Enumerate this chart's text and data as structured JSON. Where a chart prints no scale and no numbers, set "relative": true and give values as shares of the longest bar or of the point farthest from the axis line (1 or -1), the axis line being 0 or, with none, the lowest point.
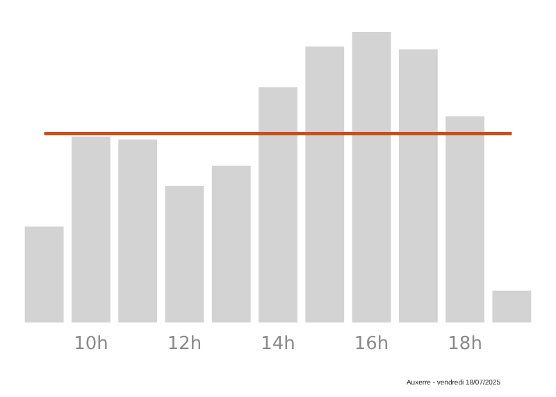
{
  "chart_data": {
    "type": "bar",
    "relative": true,
    "categories": [
      null,
      "10h",
      null,
      "12h",
      null,
      "14h",
      null,
      "16h",
      null,
      "18h",
      null
    ],
    "values": [
      0.33,
      0.64,
      0.63,
      0.47,
      0.54,
      0.81,
      0.95,
      1,
      0.94,
      0.71,
      0.11
    ],
    "color": "#d3d3d3",
    "ref_lines": [
      {
        "axis": "y",
        "value": 0.65,
        "color": "#c8501a"
      }
    ],
    "grid": false,
    "legend": false,
    "annotations": [
      "Auxerre - vendredi 18/07/2025"
    ]
  }
}
